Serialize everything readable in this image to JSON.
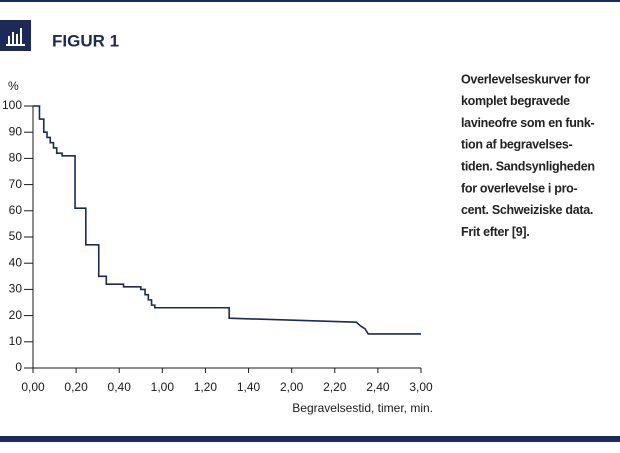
{
  "header": {
    "title": "FIGUR 1"
  },
  "caption_lines": [
    "Overlevelseskurver for",
    "komplet begravede",
    "lavineofre som en funk-",
    "tion af begravelses-",
    "tiden. Sandsynligheden",
    "for overlevelse i pro-",
    "cent. Schweiziske data.",
    "Frit efter [9]."
  ],
  "chart_data": {
    "type": "line",
    "color": "#1c2a5a",
    "y_label": "%",
    "x_label": "Begravelsestid, timer, min.",
    "x": [
      0,
      3,
      3,
      5,
      5,
      6.5,
      6.5,
      8,
      8,
      9.5,
      9.5,
      11,
      11,
      13.5,
      13.5,
      19.5,
      19.5,
      24.5,
      24.5,
      30.5,
      30.5,
      34,
      34,
      42,
      42,
      50,
      50,
      52,
      52,
      53.5,
      53.5,
      55,
      55,
      56.5,
      56.5,
      91,
      91,
      150,
      152,
      154,
      155.5,
      180
    ],
    "values": [
      100,
      100,
      95,
      95,
      90,
      90,
      88,
      88,
      86,
      86,
      84,
      84,
      82,
      82,
      81,
      81,
      61,
      61,
      47,
      47,
      35,
      35,
      32,
      32,
      31,
      31,
      30,
      30,
      28,
      28,
      26,
      26,
      24,
      24,
      23,
      23,
      19,
      17.5,
      16,
      15,
      13,
      13
    ],
    "xlim": [
      0,
      180
    ],
    "xticks": [
      {
        "value": 0,
        "label": "0,00"
      },
      {
        "value": 20,
        "label": "0,20"
      },
      {
        "value": 40,
        "label": "0,40"
      },
      {
        "value": 60,
        "label": "1,00"
      },
      {
        "value": 80,
        "label": "1,20"
      },
      {
        "value": 100,
        "label": "1,40"
      },
      {
        "value": 120,
        "label": "2,00"
      },
      {
        "value": 140,
        "label": "2,20"
      },
      {
        "value": 160,
        "label": "2,40"
      },
      {
        "value": 180,
        "label": "3,00"
      }
    ],
    "ylim": [
      0,
      100
    ],
    "yticks": [
      0,
      10,
      20,
      30,
      40,
      50,
      60,
      70,
      80,
      90,
      100
    ]
  }
}
